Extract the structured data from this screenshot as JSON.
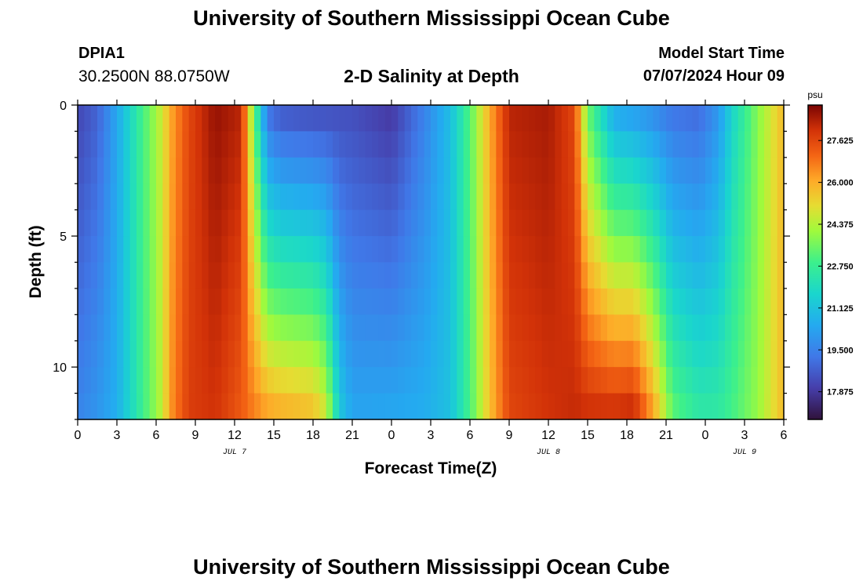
{
  "header": {
    "title_top": "University of Southern Mississippi Ocean Cube",
    "title_bottom": "University of Southern Mississippi Ocean Cube",
    "station_id": "DPIA1",
    "station_coords": "30.2500N  88.0750W",
    "subtitle": "2-D Salinity at Depth",
    "start_label": "Model Start Time",
    "start_value": "07/07/2024 Hour 09"
  },
  "chart_data": {
    "type": "heatmap",
    "title": "2-D Salinity at Depth",
    "xlabel": "Forecast Time(Z)",
    "ylabel": "Depth (ft)",
    "x_range_hours": [
      0,
      54
    ],
    "y_range_ft": [
      0,
      12
    ],
    "x_ticks": [
      {
        "h": 0,
        "label": "0"
      },
      {
        "h": 3,
        "label": "3"
      },
      {
        "h": 6,
        "label": "6"
      },
      {
        "h": 9,
        "label": "9"
      },
      {
        "h": 12,
        "label": "12"
      },
      {
        "h": 15,
        "label": "15"
      },
      {
        "h": 18,
        "label": "18"
      },
      {
        "h": 21,
        "label": "21"
      },
      {
        "h": 24,
        "label": "0"
      },
      {
        "h": 27,
        "label": "3"
      },
      {
        "h": 30,
        "label": "6"
      },
      {
        "h": 33,
        "label": "9"
      },
      {
        "h": 36,
        "label": "12"
      },
      {
        "h": 39,
        "label": "15"
      },
      {
        "h": 42,
        "label": "18"
      },
      {
        "h": 45,
        "label": "21"
      },
      {
        "h": 48,
        "label": "0"
      },
      {
        "h": 51,
        "label": "3"
      },
      {
        "h": 54,
        "label": "6"
      }
    ],
    "date_labels": [
      {
        "h": 12,
        "label": "JUL 7"
      },
      {
        "h": 36,
        "label": "JUL 8"
      },
      {
        "h": 51,
        "label": "JUL 9"
      }
    ],
    "y_ticks": [
      {
        "v": 0,
        "label": "0"
      },
      {
        "v": 5,
        "label": "5"
      },
      {
        "v": 10,
        "label": "10"
      }
    ],
    "colorbar": {
      "unit": "psu",
      "min": 16.8,
      "max": 29.0,
      "ticks": [
        "27.625",
        "26.000",
        "24.375",
        "22.750",
        "21.125",
        "19.500",
        "17.875"
      ]
    },
    "layer_depths_ft": [
      0.25,
      1.25,
      2.25,
      3.25,
      4.25,
      5.25,
      6.25,
      7.25,
      8.25,
      9.25,
      10.25,
      11.25
    ],
    "salinity_profiles": [
      {
        "t": 0,
        "top": 18.2,
        "bottom": 19.6
      },
      {
        "t": 1.5,
        "top": 18.8,
        "bottom": 20.0
      },
      {
        "t": 3,
        "top": 20.4,
        "bottom": 20.6
      },
      {
        "t": 4.5,
        "top": 22.4,
        "bottom": 22.3
      },
      {
        "t": 6.2,
        "top": 24.4,
        "bottom": 24.2
      },
      {
        "t": 7.3,
        "top": 26.3,
        "bottom": 26.6
      },
      {
        "t": 8.5,
        "top": 27.6,
        "bottom": 27.8
      },
      {
        "t": 10.5,
        "top": 28.7,
        "bottom": 28.0
      },
      {
        "t": 12.5,
        "top": 28.3,
        "bottom": 27.2
      },
      {
        "t": 13.3,
        "top": 24.3,
        "bottom": 26.9
      },
      {
        "t": 14.5,
        "top": 19.2,
        "bottom": 26.5
      },
      {
        "t": 15.5,
        "top": 18.6,
        "bottom": 26.3
      },
      {
        "t": 18.0,
        "top": 18.4,
        "bottom": 26.0
      },
      {
        "t": 19.0,
        "top": 18.4,
        "bottom": 25.0
      },
      {
        "t": 20.0,
        "top": 18.4,
        "bottom": 21.5
      },
      {
        "t": 21.0,
        "top": 18.4,
        "bottom": 20.4
      },
      {
        "t": 24.0,
        "top": 17.9,
        "bottom": 20.5
      },
      {
        "t": 26.5,
        "top": 19.5,
        "bottom": 20.6
      },
      {
        "t": 28.5,
        "top": 21.0,
        "bottom": 21.1
      },
      {
        "t": 30.0,
        "top": 23.2,
        "bottom": 23.0
      },
      {
        "t": 31.5,
        "top": 26.0,
        "bottom": 25.6
      },
      {
        "t": 33.0,
        "top": 28.3,
        "bottom": 27.6
      },
      {
        "t": 36.0,
        "top": 28.5,
        "bottom": 28.0
      },
      {
        "t": 38.0,
        "top": 27.6,
        "bottom": 28.2
      },
      {
        "t": 39.0,
        "top": 23.5,
        "bottom": 28.3
      },
      {
        "t": 41.0,
        "top": 20.5,
        "bottom": 28.4
      },
      {
        "t": 42.5,
        "top": 20.2,
        "bottom": 28.6
      },
      {
        "t": 44.0,
        "top": 19.8,
        "bottom": 26.5
      },
      {
        "t": 45.5,
        "top": 19.2,
        "bottom": 23.5
      },
      {
        "t": 47.5,
        "top": 19.0,
        "bottom": 22.6
      },
      {
        "t": 49.0,
        "top": 20.0,
        "bottom": 22.6
      },
      {
        "t": 50.0,
        "top": 21.6,
        "bottom": 23.0
      },
      {
        "t": 52.0,
        "top": 23.8,
        "bottom": 24.0
      },
      {
        "t": 54.0,
        "top": 25.8,
        "bottom": 25.8
      }
    ]
  }
}
